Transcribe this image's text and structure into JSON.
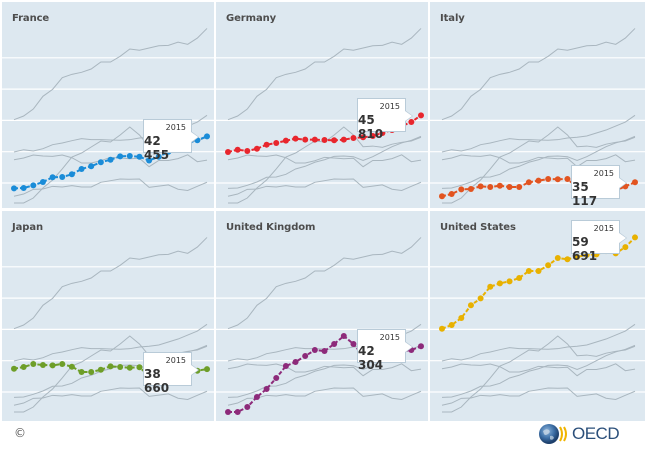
{
  "footer": {
    "copyright": "©",
    "logo_text": "OECD"
  },
  "chart_data": {
    "type": "line",
    "title": "",
    "xlabel": "",
    "ylabel": "",
    "x": [
      1995,
      1996,
      1997,
      1998,
      1999,
      2000,
      2001,
      2002,
      2003,
      2004,
      2005,
      2006,
      2007,
      2008,
      2009,
      2010,
      2011,
      2012,
      2013,
      2014,
      2015
    ],
    "ylim": [
      30700,
      60500
    ],
    "grid": true,
    "gridlines": [
      35000,
      40000,
      45000,
      50000,
      55000
    ],
    "layout": "small-multiples 3x2",
    "highlight_year": "2015",
    "background_line_color": "#a9b6bf",
    "series": [
      {
        "name": "France",
        "color": "#1a8cd8",
        "last_label": "42 455",
        "values": [
          34150,
          34200,
          34630,
          35160,
          35910,
          35960,
          36390,
          37240,
          37670,
          38310,
          38720,
          39260,
          39310,
          39200,
          38600,
          39200,
          40000,
          40800,
          41400,
          41820,
          42455
        ]
      },
      {
        "name": "Germany",
        "color": "#e8262d",
        "last_label": "45 810",
        "values": [
          39950,
          40320,
          40110,
          40480,
          41120,
          41390,
          41760,
          42080,
          41920,
          41920,
          41870,
          41820,
          41920,
          42190,
          42300,
          42510,
          42990,
          43460,
          44100,
          44740,
          45810
        ]
      },
      {
        "name": "Italy",
        "color": "#e25420",
        "last_label": "35 117",
        "values": [
          32880,
          33240,
          33990,
          34040,
          34470,
          34360,
          34570,
          34360,
          34360,
          35110,
          35370,
          35640,
          35590,
          35640,
          34300,
          34500,
          34700,
          34000,
          33800,
          34470,
          35117
        ]
      },
      {
        "name": "Japan",
        "color": "#6e9e28",
        "last_label": "38 660",
        "values": [
          38720,
          38990,
          39470,
          39310,
          39260,
          39470,
          39040,
          38190,
          38190,
          38560,
          39100,
          38990,
          38880,
          38950,
          37600,
          38600,
          38600,
          38900,
          39500,
          38400,
          38660
        ]
      },
      {
        "name": "United Kingdom",
        "color": "#8d2a7a",
        "last_label": "42 304",
        "values": [
          31806,
          31806,
          32600,
          34200,
          35480,
          37240,
          39150,
          39790,
          40750,
          41700,
          41550,
          42670,
          43940,
          42670,
          40800,
          40900,
          40700,
          41200,
          41500,
          41700,
          42304
        ]
      },
      {
        "name": "United States",
        "color": "#e8b100",
        "last_label": "59 691",
        "values": [
          45110,
          45700,
          46820,
          48850,
          49960,
          51820,
          52360,
          52680,
          53210,
          54330,
          54330,
          55240,
          56400,
          56200,
          56560,
          56930,
          56990,
          57500,
          57150,
          58150,
          59691
        ]
      }
    ]
  }
}
